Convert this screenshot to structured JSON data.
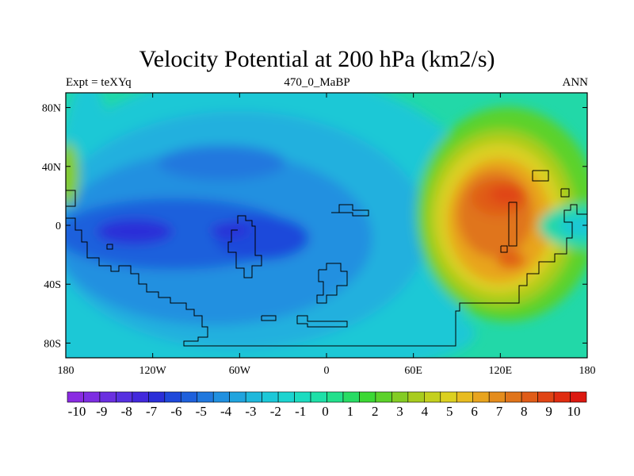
{
  "header": {
    "title": "Velocity Potential at 200 hPa (km2/s)",
    "left": "Expt = teXYq",
    "center": "470_0_MaBP",
    "right": "ANN"
  },
  "map": {
    "lon_range": [
      -180,
      180
    ],
    "lat_range": [
      -90,
      90
    ],
    "x_ticks": [
      {
        "value": -180,
        "label": "180"
      },
      {
        "value": -120,
        "label": "120W"
      },
      {
        "value": -60,
        "label": "60W"
      },
      {
        "value": 0,
        "label": "0"
      },
      {
        "value": 60,
        "label": "60E"
      },
      {
        "value": 120,
        "label": "120E"
      },
      {
        "value": 180,
        "label": "180"
      }
    ],
    "y_ticks": [
      {
        "value": 80,
        "label": "80N"
      },
      {
        "value": 40,
        "label": "40N"
      },
      {
        "value": 0,
        "label": "0"
      },
      {
        "value": -40,
        "label": "40S"
      },
      {
        "value": -80,
        "label": "80S"
      }
    ]
  },
  "colorbar": {
    "labels": [
      "-10",
      "-9",
      "-8",
      "-7",
      "-6",
      "-5",
      "-4",
      "-3",
      "-2",
      "-1",
      "0",
      "1",
      "2",
      "3",
      "4",
      "5",
      "6",
      "7",
      "8",
      "9",
      "10"
    ],
    "colors": [
      "#8a2be2",
      "#7d2de2",
      "#6a2fe0",
      "#5630e0",
      "#4228dc",
      "#2a2ed8",
      "#1e48da",
      "#1e60dc",
      "#2078de",
      "#2090e0",
      "#20a4de",
      "#1eb8dc",
      "#1cc8d8",
      "#1cd4d0",
      "#1cdcc0",
      "#1ee0a8",
      "#22e08c",
      "#28dc64",
      "#3cd834",
      "#5cd22a",
      "#84cc24",
      "#a8cc1e",
      "#c4d01e",
      "#dcd020",
      "#e8bc20",
      "#e8a41e",
      "#e48c1c",
      "#e0741a",
      "#e05c18",
      "#e04414",
      "#e02c10",
      "#dc1810"
    ]
  }
}
